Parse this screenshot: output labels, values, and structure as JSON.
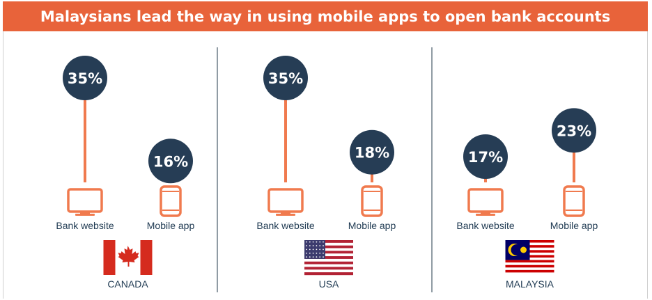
{
  "title": "Malaysians lead the way in using mobile apps to open bank accounts",
  "colors": {
    "banner": "#e8633a",
    "bubble": "#263d55",
    "stem": "#f07a4e",
    "icon": "#f07a4e",
    "divider": "#6c7a86",
    "label": "#1f3a52"
  },
  "chart_data": {
    "type": "bar",
    "title": "Malaysians lead the way in using mobile apps to open bank accounts",
    "categories": [
      "CANADA",
      "USA",
      "MALAYSIA"
    ],
    "series": [
      {
        "name": "Bank website",
        "icon": "monitor-icon",
        "values": [
          35,
          35,
          17
        ]
      },
      {
        "name": "Mobile app",
        "icon": "smartphone-icon",
        "values": [
          16,
          18,
          23
        ]
      }
    ],
    "value_labels": [
      [
        "35%",
        "16%"
      ],
      [
        "35%",
        "18%"
      ],
      [
        "17%",
        "23%"
      ]
    ],
    "ylim": [
      0,
      40
    ],
    "flags": [
      "canada-flag",
      "usa-flag",
      "malaysia-flag"
    ]
  }
}
